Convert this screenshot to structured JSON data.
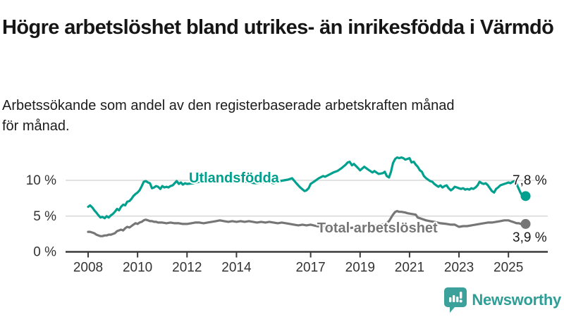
{
  "header": {
    "title": "Högre arbetslöshet bland utrikes- än inrikesfödda i Värmdö",
    "subtitle": "Arbetssökande som andel av den registerbaserade arbetskraften månad för månad."
  },
  "footer": {
    "brand": "Newsworthy",
    "brand_color": "#2e9e97",
    "logo_icon": "speech-bubble-bar-chart-icon"
  },
  "chart_data": {
    "type": "line",
    "title": "",
    "xlabel": "",
    "ylabel": "",
    "x_range": [
      2007.8,
      2025.75
    ],
    "ylim": [
      0,
      14
    ],
    "grid": "horizontal",
    "background": "#ffffff",
    "gridline_color": "#d9d9d9",
    "axis_color": "#3a3a3a",
    "tick_label_color": "#333333",
    "x_ticks": [
      2008,
      2010,
      2012,
      2014,
      2017,
      2019,
      2021,
      2023,
      2025
    ],
    "y_ticks": [
      {
        "value": 0,
        "label": "0 %"
      },
      {
        "value": 5,
        "label": "5 %"
      },
      {
        "value": 10,
        "label": "10 %"
      }
    ],
    "series": [
      {
        "name": "Utlandsfödda",
        "color": "#00a08e",
        "end_label": "7,8 %",
        "end_value": 7.8,
        "label_pos": {
          "x": 2013.9,
          "y": 10.4
        },
        "points": [
          [
            2008.0,
            6.3
          ],
          [
            2008.08,
            6.5
          ],
          [
            2008.17,
            6.2
          ],
          [
            2008.25,
            5.8
          ],
          [
            2008.33,
            5.5
          ],
          [
            2008.42,
            5.1
          ],
          [
            2008.5,
            4.8
          ],
          [
            2008.58,
            4.9
          ],
          [
            2008.67,
            4.7
          ],
          [
            2008.75,
            5.0
          ],
          [
            2008.83,
            4.8
          ],
          [
            2008.92,
            5.1
          ],
          [
            2009.0,
            5.3
          ],
          [
            2009.08,
            5.6
          ],
          [
            2009.17,
            6.0
          ],
          [
            2009.25,
            5.8
          ],
          [
            2009.33,
            6.3
          ],
          [
            2009.42,
            6.6
          ],
          [
            2009.5,
            6.5
          ],
          [
            2009.58,
            7.0
          ],
          [
            2009.67,
            7.1
          ],
          [
            2009.75,
            7.4
          ],
          [
            2009.83,
            7.8
          ],
          [
            2009.92,
            8.1
          ],
          [
            2010.0,
            8.3
          ],
          [
            2010.08,
            8.6
          ],
          [
            2010.17,
            9.2
          ],
          [
            2010.25,
            9.8
          ],
          [
            2010.33,
            9.9
          ],
          [
            2010.42,
            9.7
          ],
          [
            2010.5,
            9.6
          ],
          [
            2010.58,
            8.9
          ],
          [
            2010.67,
            9.0
          ],
          [
            2010.75,
            9.2
          ],
          [
            2010.83,
            9.1
          ],
          [
            2010.92,
            8.8
          ],
          [
            2011.0,
            9.2
          ],
          [
            2011.08,
            9.0
          ],
          [
            2011.17,
            9.1
          ],
          [
            2011.25,
            9.0
          ],
          [
            2011.33,
            9.2
          ],
          [
            2011.42,
            9.3
          ],
          [
            2011.5,
            9.6
          ],
          [
            2011.58,
            9.9
          ],
          [
            2011.67,
            9.5
          ],
          [
            2011.75,
            9.7
          ],
          [
            2011.83,
            9.4
          ],
          [
            2011.92,
            9.6
          ],
          [
            2012.0,
            9.5
          ],
          [
            2012.25,
            9.6
          ],
          [
            2012.5,
            9.8
          ],
          [
            2012.75,
            9.7
          ],
          [
            2013.0,
            9.9
          ],
          [
            2013.25,
            10.0
          ],
          [
            2013.5,
            9.8
          ],
          [
            2013.75,
            9.7
          ],
          [
            2014.0,
            9.8
          ],
          [
            2014.25,
            9.9
          ],
          [
            2014.5,
            9.7
          ],
          [
            2014.75,
            9.6
          ],
          [
            2015.0,
            9.7
          ],
          [
            2015.25,
            9.8
          ],
          [
            2015.5,
            9.6
          ],
          [
            2015.75,
            9.9
          ],
          [
            2015.92,
            10.0
          ],
          [
            2016.08,
            10.1
          ],
          [
            2016.25,
            10.3
          ],
          [
            2016.42,
            9.6
          ],
          [
            2016.58,
            9.0
          ],
          [
            2016.75,
            8.5
          ],
          [
            2016.83,
            8.6
          ],
          [
            2016.92,
            8.9
          ],
          [
            2017.0,
            9.5
          ],
          [
            2017.17,
            9.9
          ],
          [
            2017.33,
            10.3
          ],
          [
            2017.5,
            10.6
          ],
          [
            2017.58,
            10.5
          ],
          [
            2017.75,
            10.8
          ],
          [
            2017.92,
            11.1
          ],
          [
            2018.08,
            11.3
          ],
          [
            2018.25,
            11.7
          ],
          [
            2018.42,
            12.2
          ],
          [
            2018.5,
            12.5
          ],
          [
            2018.58,
            12.6
          ],
          [
            2018.67,
            12.1
          ],
          [
            2018.75,
            12.3
          ],
          [
            2018.92,
            11.7
          ],
          [
            2019.0,
            11.4
          ],
          [
            2019.17,
            11.9
          ],
          [
            2019.33,
            11.5
          ],
          [
            2019.5,
            11.1
          ],
          [
            2019.58,
            11.3
          ],
          [
            2019.75,
            10.9
          ],
          [
            2019.92,
            11.0
          ],
          [
            2020.0,
            11.2
          ],
          [
            2020.08,
            10.6
          ],
          [
            2020.17,
            10.4
          ],
          [
            2020.25,
            11.2
          ],
          [
            2020.33,
            12.4
          ],
          [
            2020.42,
            13.0
          ],
          [
            2020.5,
            13.2
          ],
          [
            2020.58,
            13.1
          ],
          [
            2020.67,
            13.2
          ],
          [
            2020.75,
            13.1
          ],
          [
            2020.83,
            12.9
          ],
          [
            2020.92,
            13.0
          ],
          [
            2021.0,
            13.1
          ],
          [
            2021.08,
            12.5
          ],
          [
            2021.17,
            12.6
          ],
          [
            2021.25,
            12.2
          ],
          [
            2021.33,
            11.9
          ],
          [
            2021.42,
            11.4
          ],
          [
            2021.5,
            11.2
          ],
          [
            2021.58,
            10.6
          ],
          [
            2021.67,
            10.3
          ],
          [
            2021.75,
            10.1
          ],
          [
            2021.83,
            9.9
          ],
          [
            2021.92,
            9.8
          ],
          [
            2022.0,
            9.5
          ],
          [
            2022.08,
            9.3
          ],
          [
            2022.17,
            9.1
          ],
          [
            2022.25,
            9.3
          ],
          [
            2022.33,
            9.0
          ],
          [
            2022.42,
            9.2
          ],
          [
            2022.5,
            9.3
          ],
          [
            2022.58,
            8.9
          ],
          [
            2022.67,
            8.6
          ],
          [
            2022.75,
            8.8
          ],
          [
            2022.83,
            9.1
          ],
          [
            2022.92,
            9.0
          ],
          [
            2023.0,
            8.9
          ],
          [
            2023.08,
            8.8
          ],
          [
            2023.17,
            8.9
          ],
          [
            2023.25,
            8.7
          ],
          [
            2023.33,
            8.8
          ],
          [
            2023.42,
            8.7
          ],
          [
            2023.5,
            8.9
          ],
          [
            2023.58,
            8.8
          ],
          [
            2023.67,
            9.0
          ],
          [
            2023.75,
            9.3
          ],
          [
            2023.83,
            9.8
          ],
          [
            2023.92,
            9.6
          ],
          [
            2024.0,
            9.5
          ],
          [
            2024.08,
            9.6
          ],
          [
            2024.17,
            9.3
          ],
          [
            2024.25,
            8.9
          ],
          [
            2024.33,
            8.5
          ],
          [
            2024.42,
            8.3
          ],
          [
            2024.5,
            8.8
          ],
          [
            2024.58,
            9.0
          ],
          [
            2024.67,
            9.3
          ],
          [
            2024.75,
            9.4
          ],
          [
            2024.83,
            9.5
          ],
          [
            2024.92,
            9.6
          ],
          [
            2025.0,
            9.7
          ],
          [
            2025.08,
            9.6
          ],
          [
            2025.17,
            9.8
          ],
          [
            2025.25,
            9.9
          ],
          [
            2025.33,
            9.5
          ],
          [
            2025.42,
            8.8
          ],
          [
            2025.5,
            8.2
          ],
          [
            2025.58,
            7.8
          ]
        ]
      },
      {
        "name": "Total arbetslöshet",
        "color": "#767676",
        "end_label": "3,9 %",
        "end_value": 3.9,
        "label_pos": {
          "x": 2019.7,
          "y": 3.4
        },
        "points": [
          [
            2008.0,
            2.8
          ],
          [
            2008.08,
            2.8
          ],
          [
            2008.17,
            2.7
          ],
          [
            2008.25,
            2.6
          ],
          [
            2008.33,
            2.4
          ],
          [
            2008.42,
            2.3
          ],
          [
            2008.5,
            2.2
          ],
          [
            2008.58,
            2.2
          ],
          [
            2008.67,
            2.3
          ],
          [
            2008.75,
            2.3
          ],
          [
            2008.83,
            2.4
          ],
          [
            2008.92,
            2.4
          ],
          [
            2009.0,
            2.5
          ],
          [
            2009.08,
            2.6
          ],
          [
            2009.17,
            2.9
          ],
          [
            2009.25,
            3.0
          ],
          [
            2009.33,
            3.1
          ],
          [
            2009.42,
            3.0
          ],
          [
            2009.5,
            3.3
          ],
          [
            2009.58,
            3.5
          ],
          [
            2009.67,
            3.4
          ],
          [
            2009.75,
            3.6
          ],
          [
            2009.83,
            3.8
          ],
          [
            2009.92,
            4.0
          ],
          [
            2010.0,
            3.9
          ],
          [
            2010.08,
            4.1
          ],
          [
            2010.17,
            4.2
          ],
          [
            2010.25,
            4.4
          ],
          [
            2010.33,
            4.5
          ],
          [
            2010.42,
            4.4
          ],
          [
            2010.5,
            4.3
          ],
          [
            2010.58,
            4.3
          ],
          [
            2010.67,
            4.2
          ],
          [
            2010.75,
            4.2
          ],
          [
            2010.83,
            4.1
          ],
          [
            2010.92,
            4.1
          ],
          [
            2011.0,
            4.1
          ],
          [
            2011.17,
            4.0
          ],
          [
            2011.33,
            4.1
          ],
          [
            2011.5,
            4.0
          ],
          [
            2011.67,
            4.0
          ],
          [
            2011.83,
            3.9
          ],
          [
            2012.0,
            3.9
          ],
          [
            2012.17,
            4.0
          ],
          [
            2012.33,
            4.1
          ],
          [
            2012.5,
            4.1
          ],
          [
            2012.67,
            4.0
          ],
          [
            2012.83,
            4.1
          ],
          [
            2013.0,
            4.2
          ],
          [
            2013.17,
            4.3
          ],
          [
            2013.33,
            4.4
          ],
          [
            2013.5,
            4.3
          ],
          [
            2013.67,
            4.2
          ],
          [
            2013.83,
            4.3
          ],
          [
            2014.0,
            4.2
          ],
          [
            2014.17,
            4.3
          ],
          [
            2014.33,
            4.2
          ],
          [
            2014.5,
            4.3
          ],
          [
            2014.67,
            4.2
          ],
          [
            2014.83,
            4.1
          ],
          [
            2015.0,
            4.2
          ],
          [
            2015.17,
            4.1
          ],
          [
            2015.33,
            4.2
          ],
          [
            2015.5,
            4.1
          ],
          [
            2015.67,
            4.0
          ],
          [
            2015.83,
            4.1
          ],
          [
            2016.0,
            4.0
          ],
          [
            2016.17,
            3.9
          ],
          [
            2016.33,
            3.8
          ],
          [
            2016.5,
            3.7
          ],
          [
            2016.67,
            3.8
          ],
          [
            2016.83,
            3.7
          ],
          [
            2017.0,
            3.8
          ],
          [
            2017.25,
            3.6
          ],
          [
            2017.5,
            3.5
          ],
          [
            2017.75,
            3.4
          ],
          [
            2018.0,
            3.4
          ],
          [
            2018.25,
            3.3
          ],
          [
            2018.5,
            3.3
          ],
          [
            2018.75,
            3.4
          ],
          [
            2019.0,
            3.4
          ],
          [
            2019.25,
            3.5
          ],
          [
            2019.5,
            3.6
          ],
          [
            2019.75,
            3.7
          ],
          [
            2020.0,
            3.9
          ],
          [
            2020.17,
            4.3
          ],
          [
            2020.33,
            5.2
          ],
          [
            2020.42,
            5.6
          ],
          [
            2020.5,
            5.7
          ],
          [
            2020.58,
            5.6
          ],
          [
            2020.67,
            5.6
          ],
          [
            2020.83,
            5.5
          ],
          [
            2020.92,
            5.4
          ],
          [
            2021.08,
            5.3
          ],
          [
            2021.25,
            5.2
          ],
          [
            2021.33,
            4.8
          ],
          [
            2021.42,
            4.7
          ],
          [
            2021.5,
            4.6
          ],
          [
            2021.67,
            4.4
          ],
          [
            2021.83,
            4.3
          ],
          [
            2022.0,
            4.2
          ],
          [
            2022.25,
            4.0
          ],
          [
            2022.5,
            3.9
          ],
          [
            2022.67,
            3.8
          ],
          [
            2022.83,
            3.8
          ],
          [
            2023.0,
            3.5
          ],
          [
            2023.17,
            3.6
          ],
          [
            2023.33,
            3.6
          ],
          [
            2023.5,
            3.7
          ],
          [
            2023.67,
            3.8
          ],
          [
            2023.83,
            3.9
          ],
          [
            2024.0,
            4.0
          ],
          [
            2024.17,
            4.1
          ],
          [
            2024.33,
            4.1
          ],
          [
            2024.5,
            4.2
          ],
          [
            2024.67,
            4.3
          ],
          [
            2024.83,
            4.4
          ],
          [
            2024.92,
            4.4
          ],
          [
            2025.0,
            4.4
          ],
          [
            2025.08,
            4.3
          ],
          [
            2025.17,
            4.2
          ],
          [
            2025.25,
            4.1
          ],
          [
            2025.33,
            4.0
          ],
          [
            2025.42,
            4.0
          ],
          [
            2025.5,
            3.9
          ],
          [
            2025.58,
            3.9
          ]
        ]
      }
    ]
  }
}
